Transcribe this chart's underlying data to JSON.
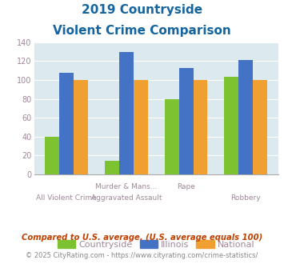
{
  "title_line1": "2019 Countryside",
  "title_line2": "Violent Crime Comparison",
  "countryside_values": [
    40,
    14,
    80,
    103
  ],
  "illinois_values": [
    108,
    130,
    113,
    121
  ],
  "national_values": [
    100,
    100,
    100,
    100
  ],
  "countryside_color": "#7dc230",
  "illinois_color": "#4472c4",
  "national_color": "#f0a030",
  "ylim": [
    0,
    140
  ],
  "yticks": [
    0,
    20,
    40,
    60,
    80,
    100,
    120,
    140
  ],
  "plot_bg": "#dce9ee",
  "title_color": "#1464a0",
  "tick_label_color": "#a08898",
  "legend_labels": [
    "Countryside",
    "Illinois",
    "National"
  ],
  "top_xlabels": {
    "1": "Murder & Mans...",
    "2": "Rape"
  },
  "bottom_xlabels": {
    "0": "All Violent Crime",
    "1": "Aggravated Assault",
    "3": "Robbery"
  },
  "footnote1": "Compared to U.S. average. (U.S. average equals 100)",
  "footnote2": "© 2025 CityRating.com - https://www.cityrating.com/crime-statistics/",
  "footnote1_color": "#c04000",
  "footnote2_color": "#888888",
  "footnote2_link_color": "#4472c4"
}
